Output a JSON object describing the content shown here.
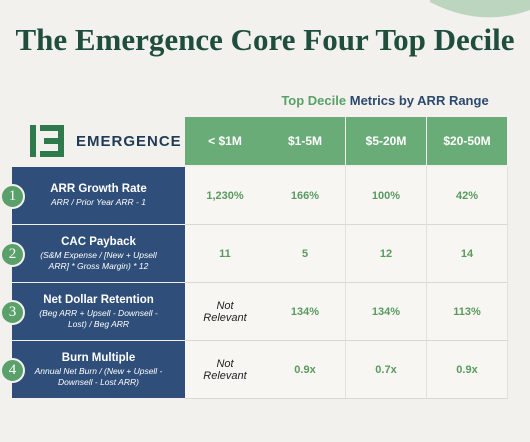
{
  "header": {
    "title": "The Emergence Core Four Top Decile",
    "subtitle_highlight": "Top Decile",
    "subtitle_rest": "Metrics by ARR Range",
    "logo_text": "EMERGENCE"
  },
  "table": {
    "columns": [
      "< $1M",
      "$1-5M",
      "$5-20M",
      "$20-50M"
    ],
    "rows": [
      {
        "number": "1",
        "name": "ARR Growth Rate",
        "formula": "ARR / Prior Year ARR - 1",
        "values": [
          "1,230%",
          "166%",
          "100%",
          "42%"
        ]
      },
      {
        "number": "2",
        "name": "CAC Payback",
        "formula": "(S&M Expense / [New + Upsell ARR] * Gross Margin) * 12",
        "values": [
          "11",
          "5",
          "12",
          "14"
        ]
      },
      {
        "number": "3",
        "name": "Net Dollar Retention",
        "formula": "(Beg ARR + Upsell - Downsell - Lost) / Beg ARR",
        "values": [
          "Not Relevant",
          "134%",
          "134%",
          "113%"
        ]
      },
      {
        "number": "4",
        "name": "Burn Multiple",
        "formula": "Annual Net Burn / (New + Upsell - Downsell - Lost ARR)",
        "values": [
          "Not Relevant",
          "0.9x",
          "0.7x",
          "0.9x"
        ]
      }
    ]
  }
}
